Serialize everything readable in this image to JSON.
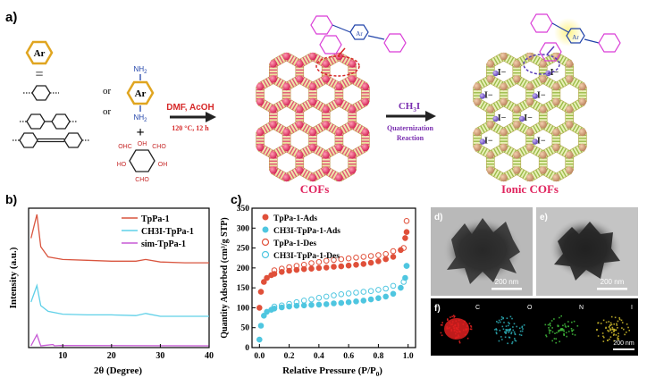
{
  "panel_a": {
    "label": "a)",
    "ar_label": "Ar",
    "equals": "=",
    "or1": "or",
    "or2": "or",
    "nh2_top": "NH",
    "nh2_bottom": "NH",
    "nh2_sub": "2",
    "ar_center": "Ar",
    "cho_tl": "OHC",
    "cho_tr": "CHO",
    "oh_l": "HO",
    "oh_r": "OH",
    "oh_top": "OH",
    "cho_bottom": "CHO",
    "cond1": "DMF, AcOH",
    "cond2": "120 °C, 12 h",
    "ch3i_pre": "CH",
    "ch3i_sub": "3",
    "ch3i_post": "I",
    "quat1": "Quaternization",
    "quat2": "Reaction",
    "cofs": "COFs",
    "ionic_cofs": "Ionic COFs",
    "iodide": "I",
    "iodide_sup": "−",
    "ar_top1": "Ar",
    "ar_top2": "Ar"
  },
  "panel_b": {
    "label": "b)",
    "xlabel": "2θ (Degree)",
    "ylabel": "Intensity (a.u.)",
    "legend": [
      "TpPa-1",
      "CH3I-TpPa-1",
      "sim-TpPa-1"
    ],
    "xticks": [
      "10",
      "20",
      "30",
      "40"
    ],
    "colors": [
      "#d9553f",
      "#5fd0e8",
      "#c75ad6"
    ]
  },
  "panel_c": {
    "label": "c)",
    "xlabel": "Relative Pressure (P/P",
    "xlabel_sub": "0",
    "xlabel_end": ")",
    "ylabel": "Quantity Adsorbed (cm³/g STP)",
    "legend": [
      "TpPa-1-Ads",
      "CH3I-TpPa-1-Ads",
      "TpPa-1-Des",
      "CH3I-TpPa-1-Des"
    ],
    "xticks": [
      "0.0",
      "0.2",
      "0.4",
      "0.6",
      "0.8",
      "1.0"
    ],
    "yticks": [
      "0",
      "50",
      "100",
      "150",
      "200",
      "250",
      "300",
      "350"
    ],
    "colors": [
      "#e0503a",
      "#4fc6e0"
    ]
  },
  "panel_d": {
    "label": "d)",
    "scale": "200 nm"
  },
  "panel_e": {
    "label": "e)",
    "scale": "200 nm"
  },
  "panel_f": {
    "label": "f)",
    "scale": "200 nm",
    "elements": [
      "C",
      "O",
      "N",
      "I"
    ]
  },
  "chart_data": [
    {
      "type": "line",
      "title": "",
      "xlabel": "2θ (Degree)",
      "ylabel": "Intensity (a.u.)",
      "xlim": [
        3,
        40
      ],
      "series": [
        {
          "name": "TpPa-1",
          "x": [
            3.5,
            4.7,
            5.5,
            7,
            10,
            15,
            20,
            25,
            27,
            30,
            35,
            40
          ],
          "values": [
            0.72,
            1.0,
            0.62,
            0.5,
            0.47,
            0.46,
            0.45,
            0.45,
            0.47,
            0.44,
            0.43,
            0.43
          ]
        },
        {
          "name": "CH3I-TpPa-1",
          "x": [
            3.5,
            4.7,
            5.5,
            7,
            10,
            15,
            20,
            25,
            27,
            30,
            35,
            40
          ],
          "values": [
            0.4,
            0.63,
            0.35,
            0.27,
            0.23,
            0.22,
            0.22,
            0.21,
            0.24,
            0.2,
            0.2,
            0.2
          ]
        },
        {
          "name": "sim-TpPa-1",
          "x": [
            3.5,
            4.7,
            5.5,
            8,
            8.3,
            9.5,
            40
          ],
          "values": [
            0.02,
            0.28,
            0.02,
            0.05,
            0.02,
            0.03,
            0.02
          ]
        }
      ]
    },
    {
      "type": "scatter",
      "title": "",
      "xlabel": "Relative Pressure (P/P0)",
      "ylabel": "Quantity Adsorbed (cm³/g STP)",
      "xlim": [
        -0.05,
        1.05
      ],
      "ylim": [
        0,
        350
      ],
      "series": [
        {
          "name": "TpPa-1-Ads",
          "x": [
            0.0,
            0.01,
            0.03,
            0.05,
            0.08,
            0.1,
            0.15,
            0.2,
            0.25,
            0.3,
            0.35,
            0.4,
            0.45,
            0.5,
            0.55,
            0.6,
            0.65,
            0.7,
            0.75,
            0.8,
            0.85,
            0.9,
            0.95,
            0.98,
            0.99
          ],
          "values": [
            100,
            140,
            165,
            175,
            182,
            185,
            190,
            193,
            195,
            197,
            198,
            200,
            201,
            203,
            204,
            206,
            208,
            210,
            213,
            217,
            222,
            228,
            245,
            275,
            290
          ]
        },
        {
          "name": "CH3I-TpPa-1-Ads",
          "x": [
            0.0,
            0.01,
            0.03,
            0.05,
            0.08,
            0.1,
            0.15,
            0.2,
            0.25,
            0.3,
            0.35,
            0.4,
            0.45,
            0.5,
            0.55,
            0.6,
            0.65,
            0.7,
            0.75,
            0.8,
            0.85,
            0.9,
            0.95,
            0.98,
            0.99
          ],
          "values": [
            20,
            55,
            80,
            90,
            95,
            98,
            101,
            103,
            105,
            106,
            107,
            108,
            109,
            111,
            112,
            114,
            116,
            118,
            121,
            124,
            128,
            135,
            150,
            175,
            205
          ]
        },
        {
          "name": "TpPa-1-Des",
          "x": [
            0.99,
            0.97,
            0.9,
            0.85,
            0.8,
            0.75,
            0.7,
            0.65,
            0.6,
            0.55,
            0.5,
            0.45,
            0.4,
            0.35,
            0.3,
            0.25,
            0.2,
            0.15,
            0.1
          ],
          "values": [
            318,
            250,
            242,
            235,
            232,
            230,
            228,
            226,
            224,
            222,
            220,
            218,
            215,
            212,
            208,
            205,
            202,
            198,
            194
          ]
        },
        {
          "name": "CH3I-TpPa-1-Des",
          "x": [
            0.99,
            0.97,
            0.9,
            0.85,
            0.8,
            0.75,
            0.7,
            0.65,
            0.6,
            0.55,
            0.5,
            0.45,
            0.4,
            0.35,
            0.3,
            0.25,
            0.2,
            0.15,
            0.1
          ],
          "values": [
            205,
            165,
            155,
            148,
            145,
            142,
            140,
            138,
            136,
            134,
            131,
            128,
            125,
            121,
            118,
            114,
            110,
            106,
            103
          ]
        }
      ]
    }
  ]
}
